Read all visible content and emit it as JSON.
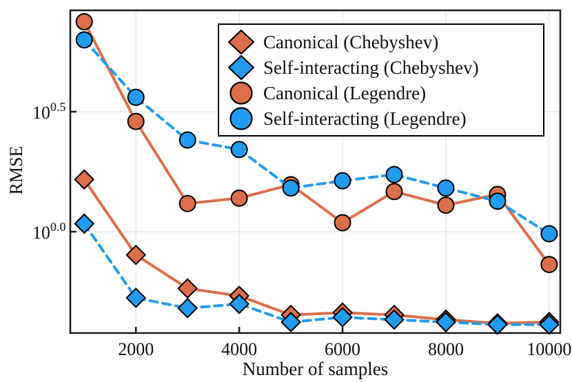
{
  "chart_data": {
    "type": "line",
    "title": "",
    "xlabel": "Number of samples",
    "ylabel": "RMSE",
    "x": [
      1000,
      2000,
      3000,
      4000,
      5000,
      6000,
      7000,
      8000,
      9000,
      10000
    ],
    "series": [
      {
        "name": "Canonical (Chebyshev)",
        "marker": "diamond",
        "line": "solid",
        "color": "#dc6e4a",
        "values": [
          1.65,
          0.8,
          0.58,
          0.54,
          0.45,
          0.46,
          0.45,
          0.43,
          0.415,
          0.42
        ]
      },
      {
        "name": "Self-interacting (Chebyshev)",
        "marker": "diamond",
        "line": "dashed",
        "color": "#209bef",
        "values": [
          1.08,
          0.53,
          0.48,
          0.5,
          0.42,
          0.44,
          0.43,
          0.42,
          0.41,
          0.41
        ]
      },
      {
        "name": "Canonical (Legendre)",
        "marker": "circle",
        "line": "solid",
        "color": "#dc6e4a",
        "values": [
          7.5,
          2.88,
          1.31,
          1.38,
          1.57,
          1.09,
          1.47,
          1.29,
          1.43,
          0.73
        ]
      },
      {
        "name": "Self-interacting (Legendre)",
        "marker": "circle",
        "line": "dashed",
        "color": "#209bef",
        "values": [
          6.3,
          3.63,
          2.41,
          2.2,
          1.52,
          1.63,
          1.73,
          1.52,
          1.34,
          0.98
        ]
      }
    ],
    "xticks": [
      {
        "value": 2000,
        "label": "2000"
      },
      {
        "value": 4000,
        "label": "4000"
      },
      {
        "value": 6000,
        "label": "6000"
      },
      {
        "value": 8000,
        "label": "8000"
      },
      {
        "value": 10000,
        "label": "10000"
      }
    ],
    "yticks": [
      {
        "base": "10",
        "exponent": "0.5",
        "exp_value": 0.5
      },
      {
        "base": "10",
        "exponent": "0.0",
        "exp_value": 0.0
      }
    ],
    "yscale": "log",
    "xlim": [
      730,
      10215
    ],
    "ylim_exponents": [
      -0.4224,
      0.9224
    ],
    "grid": true,
    "legend_position": "upper right",
    "colors": {
      "orange": "#dc6e4a",
      "blue": "#209bef",
      "grid": "#e7e7e7",
      "axis": "#1a1a1a",
      "marker_outline": "#000000"
    }
  }
}
